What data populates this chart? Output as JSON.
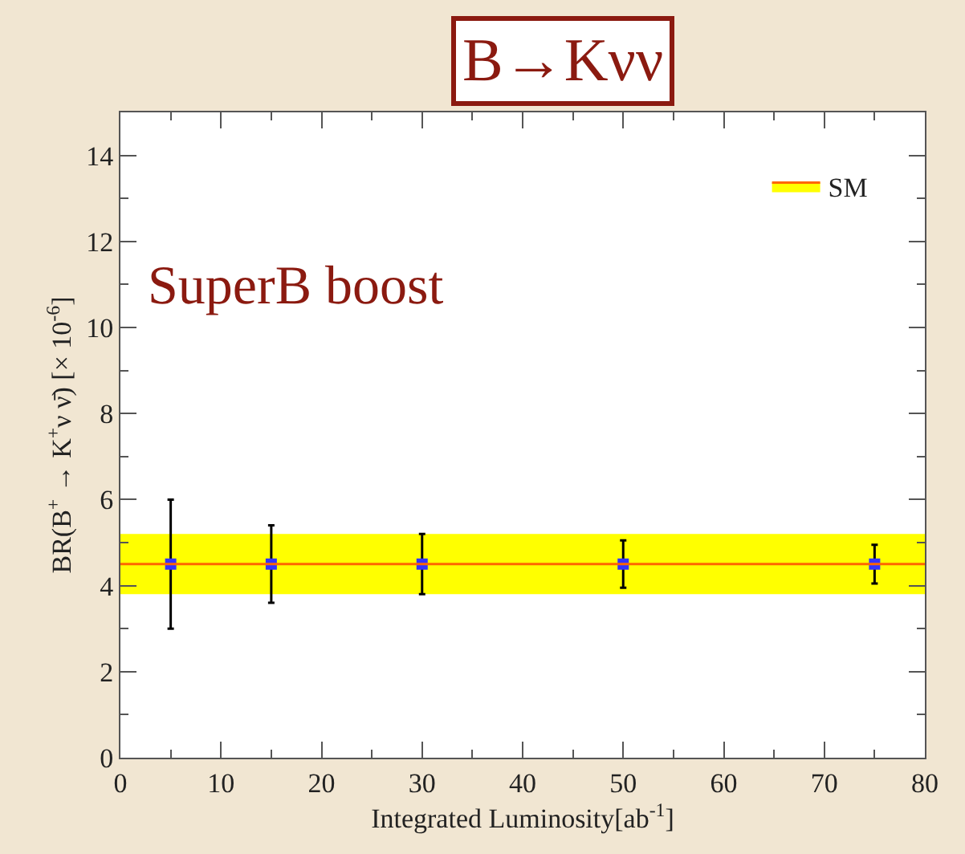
{
  "chart_data": {
    "type": "scatter",
    "title": "B→Kνν",
    "xlabel": "Integrated Luminosity[ab$^{-1}$]",
    "ylabel": "BR(B$^{+}$ → K$^{+}$ν ν̄) [× 10$^{-6}$]",
    "annotations": [
      "SuperB boost"
    ],
    "x": [
      5,
      15,
      30,
      50,
      75
    ],
    "series": [
      {
        "color": "#3333ff",
        "values": [
          4.5,
          4.5,
          4.5,
          4.5,
          4.5
        ],
        "errors": [
          1.5,
          0.9,
          0.7,
          0.55,
          0.45
        ]
      }
    ],
    "ref_lines": [
      {
        "axis": "y",
        "value": 4.5,
        "label": "SM",
        "color": "#ff6600"
      }
    ],
    "bands": [
      {
        "axis": "y",
        "from": 3.8,
        "to": 5.2,
        "color": "#ffff00"
      }
    ],
    "xlim": [
      0,
      80
    ],
    "xticks": [
      0,
      10,
      20,
      30,
      40,
      50,
      60,
      70,
      80
    ],
    "ylim": [
      0,
      15
    ],
    "yticks": [
      0,
      2,
      4,
      6,
      8,
      10,
      12,
      14
    ],
    "marker": "square",
    "grid": false,
    "legend": "top right"
  }
}
